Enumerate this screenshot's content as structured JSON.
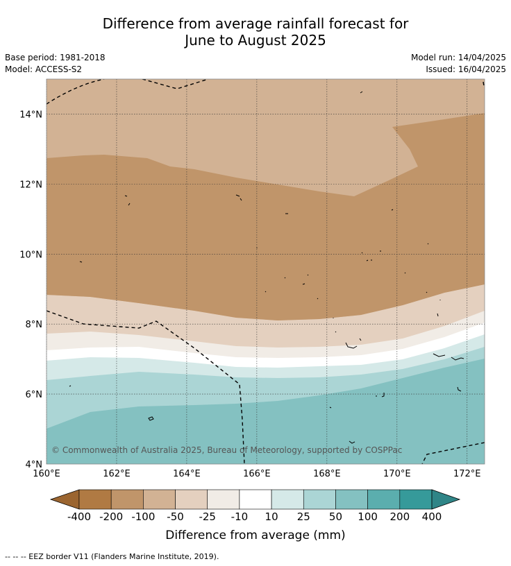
{
  "title_line1": "Difference from average rainfall forecast for",
  "title_line2": "June to August 2025",
  "meta_left": [
    "Base period: 1981-2018",
    "Model: ACCESS-S2"
  ],
  "meta_right": [
    "Model run: 14/04/2025",
    "Issued: 16/04/2025"
  ],
  "copyright": "© Commonwealth of Australia 2025, Bureau of Meteorology, supported by COSPPac",
  "map": {
    "lon_range": [
      160,
      172.5
    ],
    "lat_range": [
      4,
      15
    ],
    "lon_ticks": [
      "160°E",
      "162°E",
      "164°E",
      "166°E",
      "168°E",
      "170°E",
      "172°E"
    ],
    "lat_ticks": [
      "4°N",
      "6°N",
      "8°N",
      "10°N",
      "12°N",
      "14°N"
    ],
    "grid": true
  },
  "colorbar": {
    "labels": [
      "-400",
      "-200",
      "-100",
      "-50",
      "-25",
      "-10",
      "10",
      "25",
      "50",
      "100",
      "200",
      "400"
    ],
    "colors": [
      "#9b6530",
      "#b07a43",
      "#c0956a",
      "#d2b294",
      "#e4d0bf",
      "#f1ece6",
      "#ffffff",
      "#d5e9e8",
      "#abd5d5",
      "#84c1c1",
      "#5baeae",
      "#369a9a",
      "#2f8587"
    ],
    "title": "Difference from average (mm)"
  },
  "footnote": "--  --  -- EEZ border V11 (Flanders Marine Institute, 2019)."
}
